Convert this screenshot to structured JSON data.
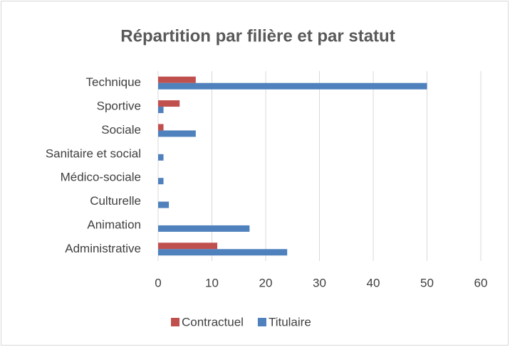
{
  "chart_data": {
    "type": "bar",
    "orientation": "horizontal",
    "title": "Répartition par filière et par statut",
    "categories": [
      "Administrative",
      "Animation",
      "Culturelle",
      "Médico-sociale",
      "Sanitaire et social",
      "Sociale",
      "Sportive",
      "Technique"
    ],
    "series": [
      {
        "name": "Contractuel",
        "color": "#c0504d",
        "values": [
          11,
          0,
          0,
          0,
          0,
          1,
          4,
          7
        ]
      },
      {
        "name": "Titulaire",
        "color": "#4f81bd",
        "values": [
          24,
          17,
          2,
          1,
          1,
          7,
          1,
          50
        ]
      }
    ],
    "xlim": [
      0,
      60
    ],
    "xticks": [
      0,
      10,
      20,
      30,
      40,
      50,
      60
    ],
    "grid": true,
    "legend": "bottom"
  }
}
